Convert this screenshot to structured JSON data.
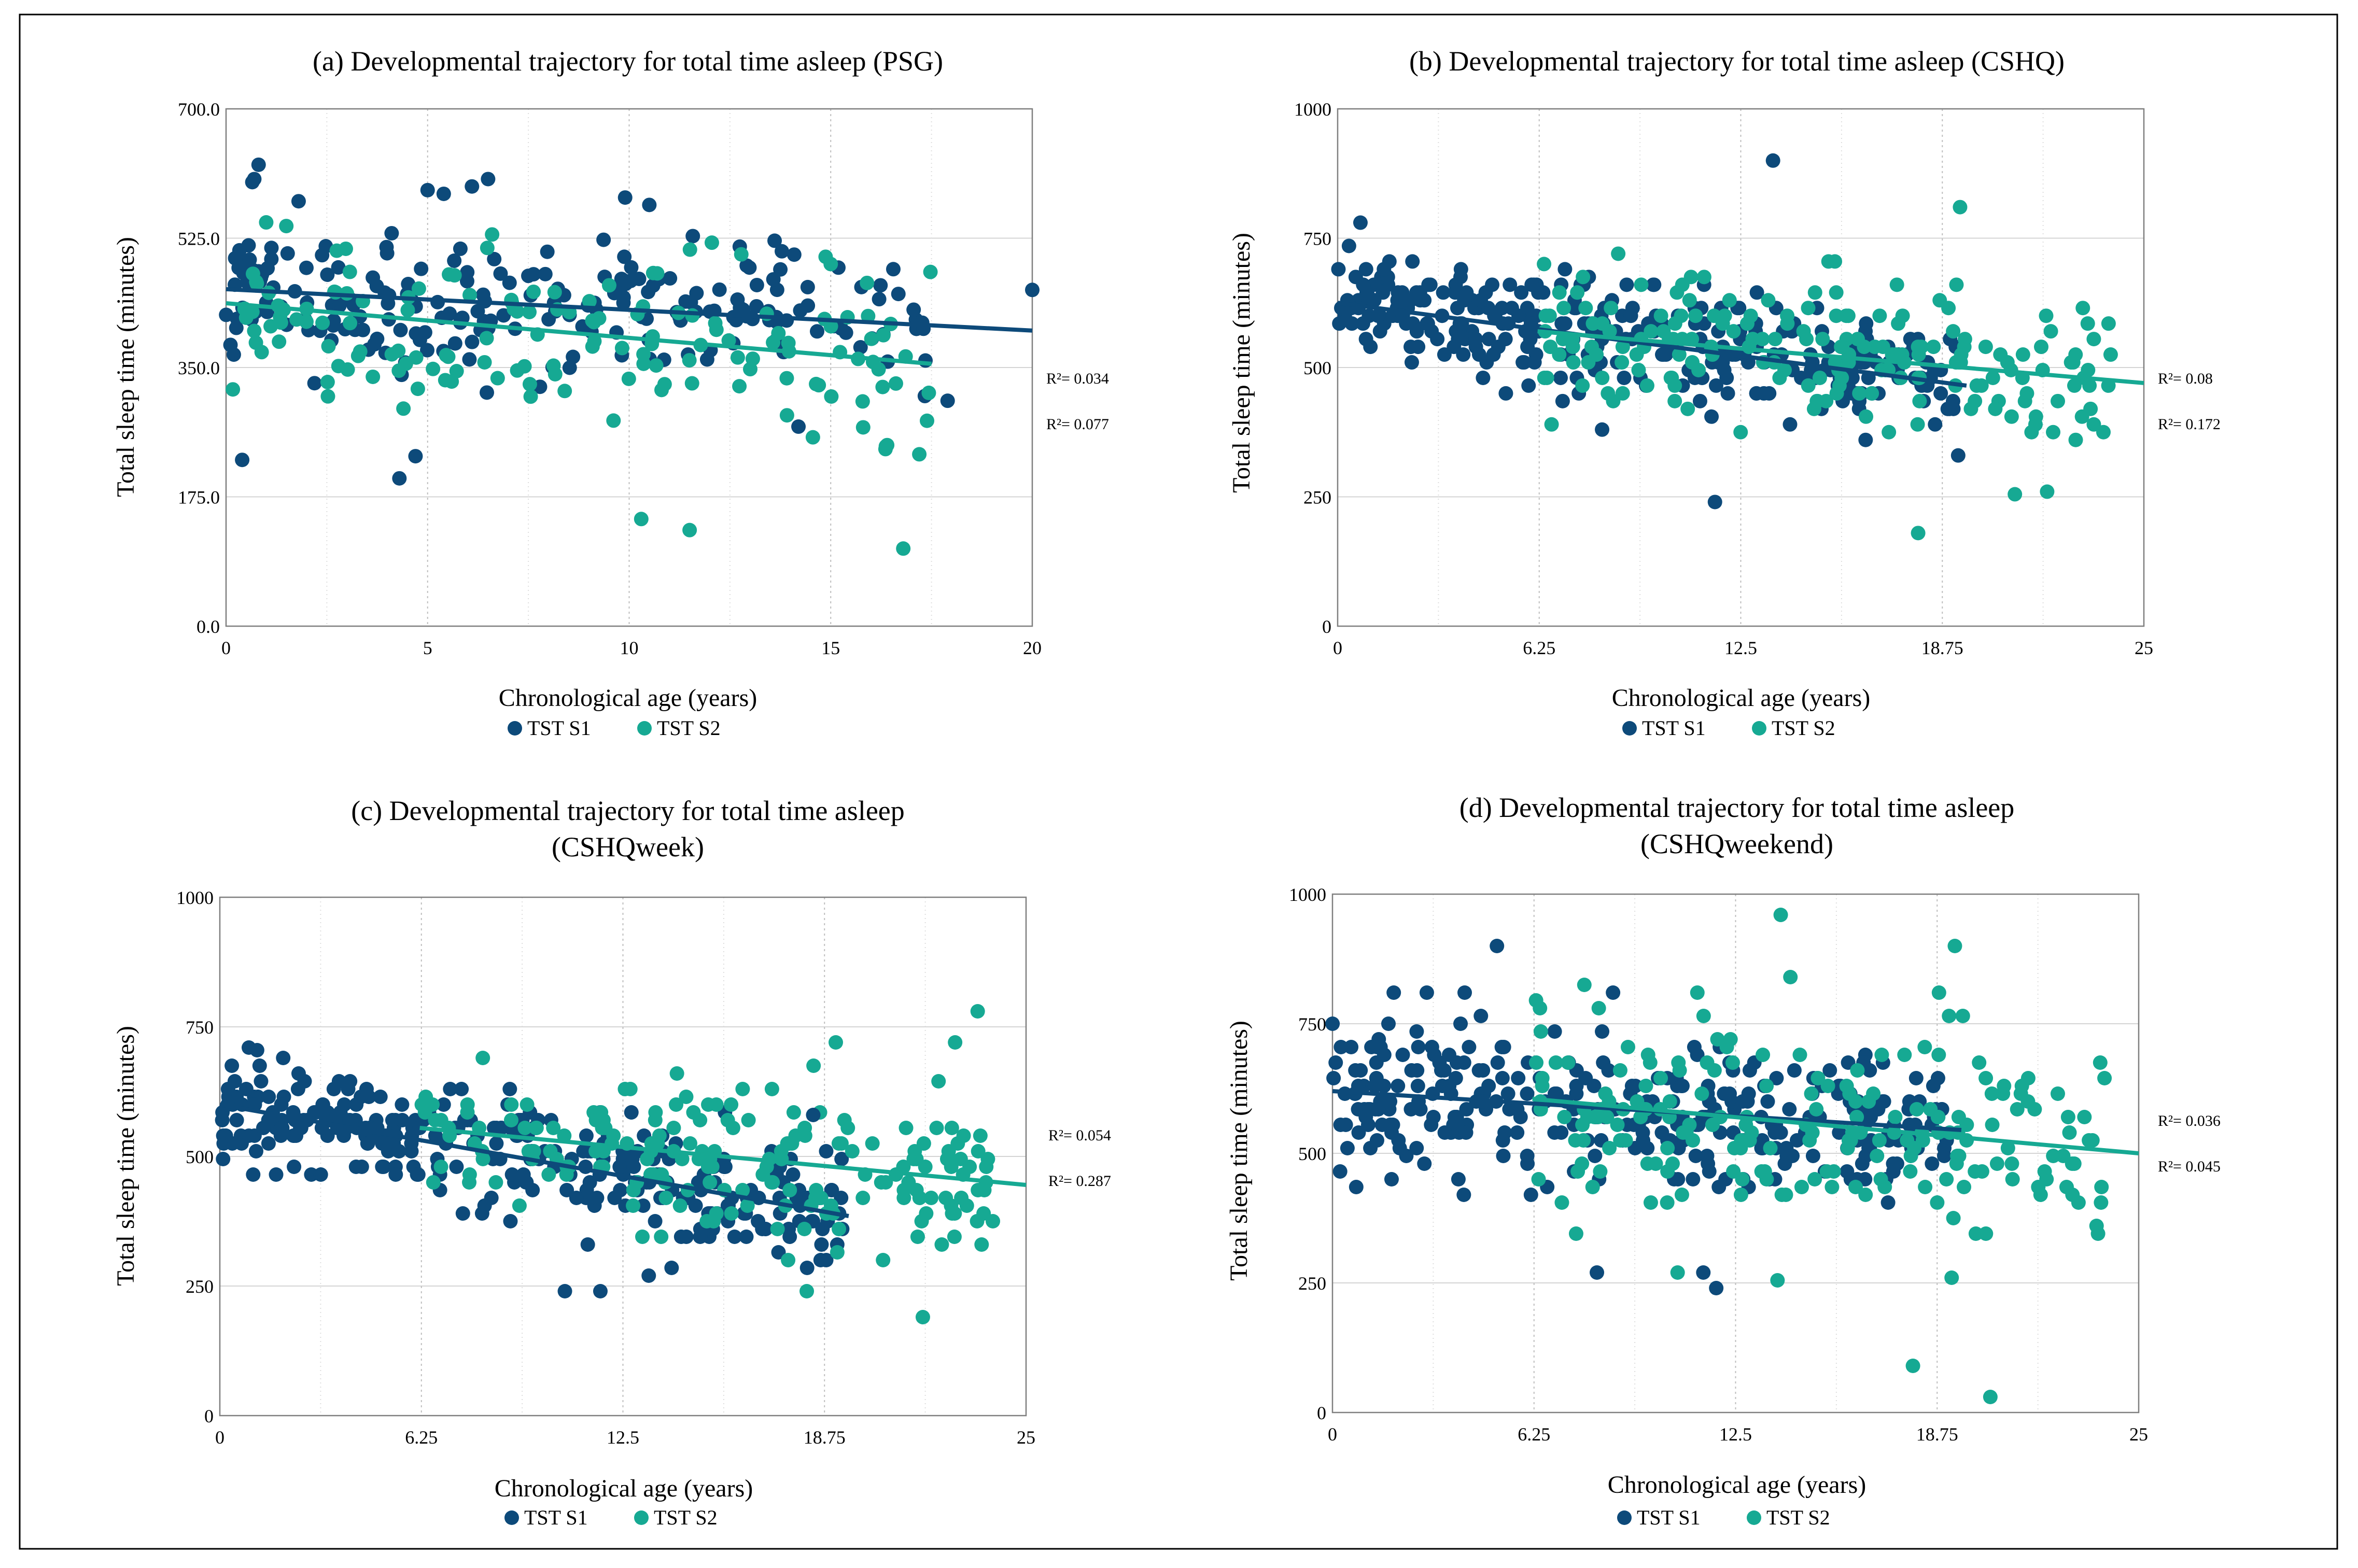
{
  "colors": {
    "s1": "#0d4a7a",
    "s2": "#16a993",
    "grid": "#d4d4d4",
    "axis": "#7f7f7f",
    "border": "#000000"
  },
  "chart_data": [
    {
      "type": "scatter",
      "title": [
        "(a) Developmental trajectory for total time asleep (PSG)"
      ],
      "xlabel": "Chronological age (years)",
      "ylabel": "Total sleep time (minutes)",
      "xlim": [
        0,
        20
      ],
      "ylim": [
        0,
        700
      ],
      "xticks": [
        0,
        5,
        10,
        15,
        20
      ],
      "xtick_labels": [
        "0",
        "5",
        "10",
        "15",
        "20"
      ],
      "yticks": [
        0,
        175,
        350,
        525,
        700
      ],
      "ytick_labels": [
        "0.0",
        "175.0",
        "350.0",
        "525.0",
        "700.0"
      ],
      "legend": [
        "TST S1",
        "TST S2"
      ],
      "trendlines": [
        {
          "series": "TST S1",
          "x": [
            0,
            20
          ],
          "y": [
            456,
            400
          ],
          "r2_label": "R²= 0.034"
        },
        {
          "series": "TST S2",
          "x": [
            0,
            17.5
          ],
          "y": [
            437,
            355
          ],
          "r2_label": "R²= 0.077"
        }
      ],
      "series": [
        {
          "name": "TST S1",
          "seed": 11,
          "n": 220,
          "x_range": [
            0,
            17.5
          ],
          "slope": -2.8,
          "intercept": 456,
          "spread": 48
        },
        {
          "name": "TST S2",
          "seed": 23,
          "n": 150,
          "x_range": [
            0,
            17.5
          ],
          "slope": -4.7,
          "intercept": 437,
          "spread": 55
        }
      ],
      "special_points": [
        {
          "series": "TST S1",
          "x": 0.7,
          "y": 605
        },
        {
          "series": "TST S1",
          "x": 1.8,
          "y": 575
        },
        {
          "series": "TST S1",
          "x": 5.0,
          "y": 590
        },
        {
          "series": "TST S1",
          "x": 5.4,
          "y": 585
        },
        {
          "series": "TST S1",
          "x": 6.1,
          "y": 595
        },
        {
          "series": "TST S1",
          "x": 6.5,
          "y": 605
        },
        {
          "series": "TST S1",
          "x": 9.9,
          "y": 580
        },
        {
          "series": "TST S1",
          "x": 10.5,
          "y": 570
        },
        {
          "series": "TST S1",
          "x": 0.4,
          "y": 225
        },
        {
          "series": "TST S1",
          "x": 4.3,
          "y": 200
        },
        {
          "series": "TST S1",
          "x": 4.7,
          "y": 230
        },
        {
          "series": "TST S1",
          "x": 20,
          "y": 455
        },
        {
          "series": "TST S1",
          "x": 17.9,
          "y": 305
        },
        {
          "series": "TST S1",
          "x": 14.2,
          "y": 270
        },
        {
          "series": "TST S2",
          "x": 10.3,
          "y": 145
        },
        {
          "series": "TST S2",
          "x": 11.5,
          "y": 130
        },
        {
          "series": "TST S2",
          "x": 16.8,
          "y": 105
        },
        {
          "series": "TST S2",
          "x": 16.4,
          "y": 245
        },
        {
          "series": "TST S2",
          "x": 6.6,
          "y": 530
        },
        {
          "series": "TST S2",
          "x": 15.0,
          "y": 490
        }
      ]
    },
    {
      "type": "scatter",
      "title": [
        "(b) Developmental trajectory for total time asleep (CSHQ)"
      ],
      "xlabel": "Chronological age (years)",
      "ylabel": "Total sleep time (minutes)",
      "xlim": [
        0,
        25
      ],
      "ylim": [
        0,
        1000
      ],
      "xticks": [
        0,
        6.25,
        12.5,
        18.75,
        25
      ],
      "xtick_labels": [
        "0",
        "6.25",
        "12.5",
        "18.75",
        "25"
      ],
      "yticks": [
        0,
        250,
        500,
        750,
        1000
      ],
      "ytick_labels": [
        "0",
        "250",
        "500",
        "750",
        "1000"
      ],
      "legend": [
        "TST S1",
        "TST S2"
      ],
      "trendlines": [
        {
          "series": "TST S1",
          "x": [
            0,
            19.5
          ],
          "y": [
            625,
            465
          ],
          "r2_label": "R²= 0.08"
        },
        {
          "series": "TST S2",
          "x": [
            6.2,
            25
          ],
          "y": [
            570,
            470
          ],
          "r2_label": "R²= 0.172"
        }
      ],
      "series": [
        {
          "name": "TST S1",
          "seed": 37,
          "n": 320,
          "x_range": [
            0,
            19.3
          ],
          "slope": -8.2,
          "intercept": 625,
          "spread": 55
        },
        {
          "name": "TST S2",
          "seed": 41,
          "n": 190,
          "x_range": [
            6.2,
            24
          ],
          "slope": -5.3,
          "intercept": 603,
          "spread": 70
        }
      ],
      "special_points": [
        {
          "series": "TST S1",
          "x": 13.5,
          "y": 900
        },
        {
          "series": "TST S1",
          "x": 11.7,
          "y": 240
        },
        {
          "series": "TST S1",
          "x": 8.2,
          "y": 380
        },
        {
          "series": "TST S2",
          "x": 19.3,
          "y": 810
        },
        {
          "series": "TST S2",
          "x": 18.0,
          "y": 180
        },
        {
          "series": "TST S2",
          "x": 21.0,
          "y": 255
        },
        {
          "series": "TST S2",
          "x": 22.0,
          "y": 260
        },
        {
          "series": "TST S2",
          "x": 8.7,
          "y": 720
        },
        {
          "series": "TST S2",
          "x": 6.4,
          "y": 700
        }
      ]
    },
    {
      "type": "scatter",
      "title": [
        "(c) Developmental trajectory for total time asleep",
        "(CSHQweek)"
      ],
      "xlabel": "Chronological age (years)",
      "ylabel": "Total sleep time (minutes)",
      "xlim": [
        0,
        25
      ],
      "ylim": [
        0,
        1000
      ],
      "xticks": [
        0,
        6.25,
        12.5,
        18.75,
        25
      ],
      "xtick_labels": [
        "0",
        "6.25",
        "12.5",
        "18.75",
        "25"
      ],
      "yticks": [
        0,
        250,
        500,
        750,
        1000
      ],
      "ytick_labels": [
        "0",
        "250",
        "500",
        "750",
        "1000"
      ],
      "legend": [
        "TST S1",
        "TST S2"
      ],
      "trendlines": [
        {
          "series": "TST S1",
          "x": [
            0,
            19.5
          ],
          "y": [
            600,
            385
          ],
          "r2_label": "R²= 0.054"
        },
        {
          "series": "TST S2",
          "x": [
            6.2,
            25
          ],
          "y": [
            555,
            445
          ],
          "r2_label": "R²= 0.287"
        }
      ],
      "series": [
        {
          "name": "TST S1",
          "seed": 53,
          "n": 320,
          "x_range": [
            0,
            19.3
          ],
          "slope": -11.0,
          "intercept": 600,
          "spread": 55
        },
        {
          "name": "TST S2",
          "seed": 61,
          "n": 190,
          "x_range": [
            6.2,
            24
          ],
          "slope": -5.85,
          "intercept": 591,
          "spread": 75
        }
      ],
      "special_points": [
        {
          "series": "TST S1",
          "x": 10.7,
          "y": 240
        },
        {
          "series": "TST S1",
          "x": 11.8,
          "y": 240
        },
        {
          "series": "TST S1",
          "x": 13.3,
          "y": 270
        },
        {
          "series": "TST S1",
          "x": 0.9,
          "y": 710
        },
        {
          "series": "TST S1",
          "x": 18.4,
          "y": 580
        },
        {
          "series": "TST S2",
          "x": 23.5,
          "y": 780
        },
        {
          "series": "TST S2",
          "x": 22.8,
          "y": 720
        },
        {
          "series": "TST S2",
          "x": 19.1,
          "y": 720
        },
        {
          "series": "TST S2",
          "x": 21.8,
          "y": 190
        },
        {
          "series": "TST S2",
          "x": 18.2,
          "y": 240
        }
      ]
    },
    {
      "type": "scatter",
      "title": [
        "(d) Developmental trajectory for total time asleep",
        "(CSHQweekend)"
      ],
      "xlabel": "Chronological age (years)",
      "ylabel": "Total sleep time (minutes)",
      "xlim": [
        0,
        25
      ],
      "ylim": [
        0,
        1000
      ],
      "xticks": [
        0,
        6.25,
        12.5,
        18.75,
        25
      ],
      "xtick_labels": [
        "0",
        "6.25",
        "12.5",
        "18.75",
        "25"
      ],
      "yticks": [
        0,
        250,
        500,
        750,
        1000
      ],
      "ytick_labels": [
        "0",
        "250",
        "500",
        "750",
        "1000"
      ],
      "legend": [
        "TST S1",
        "TST S2"
      ],
      "trendlines": [
        {
          "series": "TST S1",
          "x": [
            0,
            19.5
          ],
          "y": [
            620,
            545
          ],
          "r2_label": "R²= 0.036"
        },
        {
          "series": "TST S2",
          "x": [
            6.2,
            25
          ],
          "y": [
            605,
            500
          ],
          "r2_label": "R²= 0.045"
        }
      ],
      "series": [
        {
          "name": "TST S1",
          "seed": 71,
          "n": 320,
          "x_range": [
            0,
            19.3
          ],
          "slope": -3.85,
          "intercept": 620,
          "spread": 70
        },
        {
          "name": "TST S2",
          "seed": 83,
          "n": 200,
          "x_range": [
            6.2,
            24
          ],
          "slope": -5.6,
          "intercept": 640,
          "spread": 95
        }
      ],
      "special_points": [
        {
          "series": "TST S1",
          "x": 5.1,
          "y": 900
        },
        {
          "series": "TST S1",
          "x": 4.1,
          "y": 810
        },
        {
          "series": "TST S1",
          "x": 1.9,
          "y": 810
        },
        {
          "series": "TST S1",
          "x": 8.7,
          "y": 810
        },
        {
          "series": "TST S1",
          "x": 8.2,
          "y": 270
        },
        {
          "series": "TST S1",
          "x": 11.5,
          "y": 270
        },
        {
          "series": "TST S1",
          "x": 11.9,
          "y": 240
        },
        {
          "series": "TST S2",
          "x": 13.9,
          "y": 960
        },
        {
          "series": "TST S2",
          "x": 19.3,
          "y": 900
        },
        {
          "series": "TST S2",
          "x": 14.2,
          "y": 840
        },
        {
          "series": "TST S2",
          "x": 18.0,
          "y": 90
        },
        {
          "series": "TST S2",
          "x": 20.4,
          "y": 30
        },
        {
          "series": "TST S2",
          "x": 13.8,
          "y": 255
        },
        {
          "series": "TST S2",
          "x": 19.2,
          "y": 260
        }
      ]
    }
  ]
}
